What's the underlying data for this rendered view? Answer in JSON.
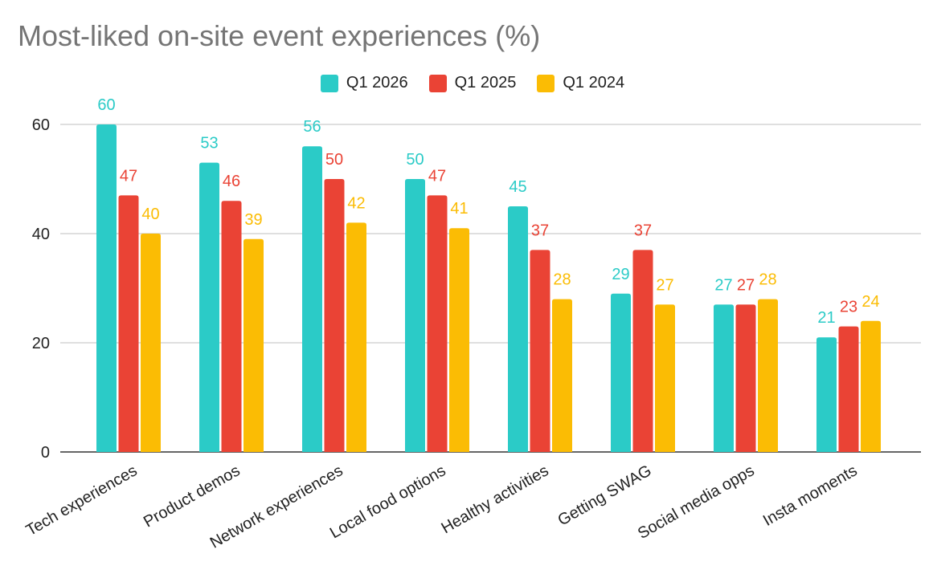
{
  "chart_data": {
    "type": "bar",
    "title": "Most-liked on-site event experiences (%)",
    "xlabel": "",
    "ylabel": "",
    "ylim": [
      0,
      65
    ],
    "yticks": [
      0,
      20,
      40,
      60
    ],
    "grid": true,
    "legend_position": "top",
    "categories": [
      "Tech experiences",
      "Product demos",
      "Network experiences",
      "Local food options",
      "Healthy activities",
      "Getting SWAG",
      "Social media opps",
      "Insta moments"
    ],
    "series": [
      {
        "name": "Q1 2026",
        "color": "#2BCBC7",
        "values": [
          60,
          53,
          56,
          50,
          45,
          29,
          27,
          21
        ]
      },
      {
        "name": "Q1 2025",
        "color": "#EA4335",
        "values": [
          47,
          46,
          50,
          47,
          37,
          37,
          27,
          23
        ]
      },
      {
        "name": "Q1 2024",
        "color": "#FBBC04",
        "values": [
          40,
          39,
          42,
          41,
          28,
          27,
          28,
          24
        ]
      }
    ]
  }
}
